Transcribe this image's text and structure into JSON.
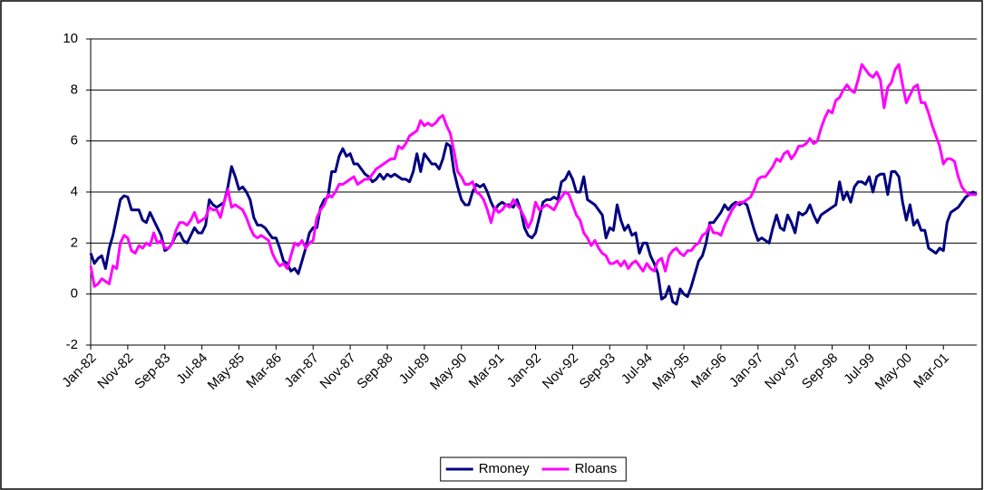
{
  "chart_data": {
    "type": "line",
    "categories": [
      "Jan-82",
      null,
      null,
      null,
      null,
      null,
      null,
      null,
      null,
      null,
      "Nov-82",
      null,
      null,
      null,
      null,
      null,
      null,
      null,
      null,
      null,
      "Sep-83",
      null,
      null,
      null,
      null,
      null,
      null,
      null,
      null,
      null,
      "Jul-84",
      null,
      null,
      null,
      null,
      null,
      null,
      null,
      null,
      null,
      "May-85",
      null,
      null,
      null,
      null,
      null,
      null,
      null,
      null,
      null,
      "Mar-86",
      null,
      null,
      null,
      null,
      null,
      null,
      null,
      null,
      null,
      "Jan-87",
      null,
      null,
      null,
      null,
      null,
      null,
      null,
      null,
      null,
      "Nov-87",
      null,
      null,
      null,
      null,
      null,
      null,
      null,
      null,
      null,
      "Sep-88",
      null,
      null,
      null,
      null,
      null,
      null,
      null,
      null,
      null,
      "Jul-89",
      null,
      null,
      null,
      null,
      null,
      null,
      null,
      null,
      null,
      "May-90",
      null,
      null,
      null,
      null,
      null,
      null,
      null,
      null,
      null,
      "Mar-91",
      null,
      null,
      null,
      null,
      null,
      null,
      null,
      null,
      null,
      "Jan-92",
      null,
      null,
      null,
      null,
      null,
      null,
      null,
      null,
      null,
      "Nov-92",
      null,
      null,
      null,
      null,
      null,
      null,
      null,
      null,
      null,
      "Sep-93",
      null,
      null,
      null,
      null,
      null,
      null,
      null,
      null,
      null,
      "Jul-94",
      null,
      null,
      null,
      null,
      null,
      null,
      null,
      null,
      null,
      "May-95",
      null,
      null,
      null,
      null,
      null,
      null,
      null,
      null,
      null,
      "Mar-96",
      null,
      null,
      null,
      null,
      null,
      null,
      null,
      null,
      null,
      "Jan-97",
      null,
      null,
      null,
      null,
      null,
      null,
      null,
      null,
      null,
      "Nov-97",
      null,
      null,
      null,
      null,
      null,
      null,
      null,
      null,
      null,
      "Sep-98",
      null,
      null,
      null,
      null,
      null,
      null,
      null,
      null,
      null,
      "Jul-99",
      null,
      null,
      null,
      null,
      null,
      null,
      null,
      null,
      null,
      "May-00",
      null,
      null,
      null,
      null,
      null,
      null,
      null,
      null,
      null,
      "Mar-01",
      null,
      null,
      null,
      null,
      null,
      null,
      null,
      null,
      null
    ],
    "series": [
      {
        "name": "Rmoney",
        "color": "#000080",
        "values": [
          1.6,
          1.2,
          1.4,
          1.5,
          1.0,
          1.8,
          2.3,
          3.0,
          3.7,
          3.85,
          3.8,
          3.3,
          3.3,
          3.3,
          2.9,
          2.8,
          3.2,
          2.9,
          2.6,
          2.3,
          1.7,
          1.8,
          2.0,
          2.3,
          2.4,
          2.1,
          2.0,
          2.3,
          2.6,
          2.4,
          2.4,
          2.7,
          3.7,
          3.5,
          3.4,
          3.5,
          3.6,
          4.2,
          5.0,
          4.6,
          4.1,
          4.2,
          4.0,
          3.7,
          3.0,
          2.7,
          2.7,
          2.6,
          2.4,
          2.2,
          2.2,
          1.8,
          1.3,
          1.2,
          0.9,
          1.0,
          0.8,
          1.3,
          1.8,
          2.4,
          2.6,
          2.6,
          3.4,
          3.7,
          3.8,
          4.8,
          4.8,
          5.4,
          5.7,
          5.4,
          5.5,
          5.1,
          5.1,
          4.9,
          4.7,
          4.6,
          4.4,
          4.5,
          4.7,
          4.5,
          4.7,
          4.6,
          4.7,
          4.6,
          4.5,
          4.5,
          4.4,
          4.8,
          5.5,
          4.8,
          5.5,
          5.3,
          5.1,
          5.1,
          4.9,
          5.3,
          5.9,
          5.8,
          4.8,
          4.2,
          3.7,
          3.5,
          3.5,
          4.0,
          4.3,
          4.2,
          4.3,
          4.0,
          3.6,
          3.3,
          3.5,
          3.6,
          3.5,
          3.5,
          3.4,
          3.7,
          3.3,
          2.6,
          2.3,
          2.2,
          2.4,
          3.0,
          3.6,
          3.7,
          3.7,
          3.8,
          3.7,
          4.4,
          4.5,
          4.8,
          4.5,
          4.0,
          4.0,
          4.6,
          3.7,
          3.6,
          3.5,
          3.3,
          3.1,
          2.2,
          2.6,
          2.5,
          3.5,
          2.9,
          2.5,
          2.7,
          2.3,
          2.4,
          1.6,
          2.0,
          2.0,
          1.5,
          1.2,
          0.8,
          -0.2,
          -0.1,
          0.3,
          -0.3,
          -0.4,
          0.2,
          0.0,
          -0.1,
          0.3,
          0.8,
          1.3,
          1.5,
          2.0,
          2.8,
          2.8,
          3.0,
          3.2,
          3.5,
          3.3,
          3.5,
          3.6,
          3.5,
          3.6,
          3.5,
          3.0,
          2.5,
          2.1,
          2.2,
          2.1,
          2.0,
          2.6,
          3.1,
          2.6,
          2.5,
          3.1,
          2.8,
          2.4,
          3.2,
          3.1,
          3.2,
          3.5,
          3.1,
          2.8,
          3.1,
          3.2,
          3.3,
          3.4,
          3.5,
          4.4,
          3.7,
          4.0,
          3.6,
          4.2,
          4.4,
          4.4,
          4.3,
          4.6,
          4.0,
          4.6,
          4.7,
          4.7,
          3.9,
          4.8,
          4.8,
          4.6,
          3.6,
          2.9,
          3.5,
          2.7,
          2.9,
          2.5,
          2.5,
          1.8,
          1.7,
          1.6,
          1.8,
          1.7,
          2.8,
          3.2,
          3.3,
          3.4,
          3.6,
          3.8,
          3.9,
          4.0,
          3.9
        ]
      },
      {
        "name": "Rloans",
        "color": "#ff00ff",
        "values": [
          1.1,
          0.3,
          0.4,
          0.6,
          0.5,
          0.4,
          1.1,
          1.0,
          2.0,
          2.3,
          2.2,
          1.7,
          1.6,
          1.9,
          1.8,
          2.0,
          1.9,
          2.4,
          2.0,
          2.1,
          1.8,
          1.8,
          2.0,
          2.5,
          2.8,
          2.8,
          2.7,
          2.9,
          3.2,
          2.8,
          2.9,
          3.0,
          3.4,
          3.3,
          3.3,
          3.0,
          3.6,
          4.1,
          3.4,
          3.5,
          3.4,
          3.3,
          3.0,
          2.6,
          2.3,
          2.2,
          2.3,
          2.2,
          2.1,
          1.6,
          1.3,
          1.1,
          1.2,
          1.0,
          1.5,
          2.0,
          1.9,
          2.1,
          1.8,
          2.0,
          2.1,
          3.0,
          3.3,
          3.5,
          3.9,
          3.8,
          4.0,
          4.3,
          4.3,
          4.4,
          4.5,
          4.6,
          4.3,
          4.4,
          4.5,
          4.5,
          4.7,
          4.9,
          5.0,
          5.1,
          5.2,
          5.3,
          5.3,
          5.8,
          5.7,
          5.9,
          6.2,
          6.3,
          6.4,
          6.8,
          6.6,
          6.7,
          6.6,
          6.7,
          6.9,
          7.0,
          6.6,
          6.3,
          5.6,
          4.8,
          4.6,
          4.3,
          4.3,
          4.4,
          4.0,
          3.9,
          3.7,
          3.3,
          2.8,
          3.4,
          3.2,
          3.3,
          3.5,
          3.4,
          3.7,
          3.5,
          3.3,
          3.0,
          2.6,
          2.9,
          3.6,
          3.3,
          3.4,
          3.5,
          3.4,
          3.3,
          3.6,
          3.8,
          4.0,
          3.9,
          3.5,
          3.1,
          2.9,
          2.4,
          2.2,
          1.9,
          2.1,
          1.8,
          1.6,
          1.5,
          1.2,
          1.2,
          1.3,
          1.1,
          1.3,
          1.0,
          1.2,
          1.3,
          1.1,
          0.9,
          1.2,
          1.0,
          0.9,
          1.3,
          1.4,
          0.9,
          1.5,
          1.7,
          1.8,
          1.6,
          1.5,
          1.7,
          1.7,
          1.9,
          2.0,
          2.3,
          2.4,
          2.7,
          2.4,
          2.4,
          2.3,
          2.7,
          3.0,
          3.3,
          3.5,
          3.6,
          3.6,
          3.7,
          3.8,
          4.1,
          4.5,
          4.6,
          4.6,
          4.8,
          5.0,
          5.3,
          5.2,
          5.5,
          5.6,
          5.3,
          5.5,
          5.8,
          5.8,
          5.9,
          6.1,
          5.9,
          6.0,
          6.5,
          6.9,
          7.2,
          7.1,
          7.6,
          7.7,
          8.0,
          8.2,
          8.0,
          7.9,
          8.4,
          9.0,
          8.8,
          8.6,
          8.5,
          8.7,
          8.4,
          7.3,
          8.1,
          8.3,
          8.8,
          9.0,
          8.2,
          7.5,
          7.8,
          8.1,
          8.2,
          7.5,
          7.5,
          7.1,
          6.6,
          6.2,
          5.8,
          5.1,
          5.3,
          5.3,
          5.2,
          4.6,
          4.2,
          4.0,
          3.9,
          3.9,
          3.9
        ]
      }
    ],
    "ylim": [
      -2,
      10
    ],
    "yticks": [
      -2,
      0,
      2,
      4,
      6,
      8,
      10
    ],
    "grid": true,
    "legend": "bottom"
  }
}
